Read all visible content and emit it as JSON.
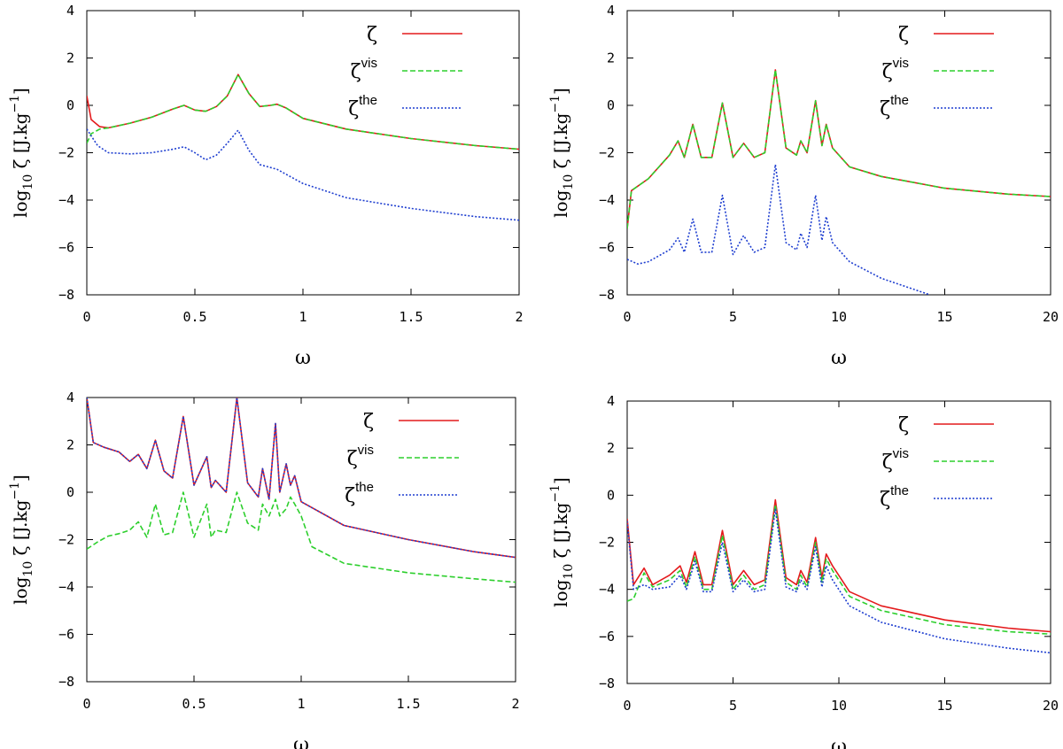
{
  "figure": {
    "layout": "2x2 grid of log-scale response spectra"
  },
  "chart_data": [
    {
      "type": "line",
      "panel": "top-left",
      "xlabel": "ω",
      "ylabel": "log10 ζ [J.kg^-1]",
      "ylabel_parts": {
        "base": "log",
        "sub": "10",
        "sym": " ζ [J.kg",
        "sup": "−1",
        "close": "]"
      },
      "xlim": [
        0,
        2
      ],
      "ylim": [
        -8,
        4
      ],
      "xticks": [
        "0",
        "0.5",
        "1",
        "1.5",
        "2"
      ],
      "yticks": [
        "4",
        "2",
        "0",
        "−2",
        "−4",
        "−6",
        "−8"
      ],
      "legend_position": "top-right",
      "series": [
        {
          "name": "ζ",
          "sup": "",
          "color": "#e41a1c",
          "dash": "solid",
          "x": [
            0,
            0.02,
            0.06,
            0.1,
            0.2,
            0.3,
            0.4,
            0.45,
            0.5,
            0.55,
            0.6,
            0.65,
            0.7,
            0.75,
            0.8,
            0.85,
            0.88,
            0.92,
            1.0,
            1.2,
            1.5,
            1.8,
            2.0
          ],
          "y": [
            0.4,
            -0.6,
            -0.9,
            -0.95,
            -0.75,
            -0.5,
            -0.15,
            0.0,
            -0.2,
            -0.25,
            -0.05,
            0.4,
            1.3,
            0.5,
            -0.05,
            0.0,
            0.05,
            -0.1,
            -0.55,
            -1.0,
            -1.4,
            -1.7,
            -1.85
          ]
        },
        {
          "name": "ζ",
          "sup": "vis",
          "color": "#2dcf2d",
          "dash": "6,3",
          "x": [
            0,
            0.02,
            0.06,
            0.1,
            0.2,
            0.3,
            0.4,
            0.45,
            0.5,
            0.55,
            0.6,
            0.65,
            0.7,
            0.75,
            0.8,
            0.85,
            0.88,
            0.92,
            1.0,
            1.2,
            1.5,
            1.8,
            2.0
          ],
          "y": [
            -1.6,
            -1.2,
            -1.0,
            -0.95,
            -0.75,
            -0.5,
            -0.15,
            0.0,
            -0.2,
            -0.25,
            -0.05,
            0.4,
            1.3,
            0.5,
            -0.05,
            0.0,
            0.05,
            -0.1,
            -0.55,
            -1.0,
            -1.4,
            -1.7,
            -1.85
          ]
        },
        {
          "name": "ζ",
          "sup": "the",
          "color": "#1f3fd0",
          "dash": "2,2",
          "x": [
            0,
            0.05,
            0.1,
            0.2,
            0.3,
            0.4,
            0.45,
            0.5,
            0.55,
            0.6,
            0.65,
            0.7,
            0.75,
            0.8,
            0.88,
            1.0,
            1.2,
            1.5,
            1.8,
            2.0
          ],
          "y": [
            -1.0,
            -1.7,
            -2.0,
            -2.05,
            -2.0,
            -1.85,
            -1.75,
            -2.0,
            -2.3,
            -2.1,
            -1.6,
            -1.05,
            -1.9,
            -2.5,
            -2.7,
            -3.3,
            -3.9,
            -4.35,
            -4.7,
            -4.85
          ]
        }
      ]
    },
    {
      "type": "line",
      "panel": "top-right",
      "xlabel": "ω",
      "ylabel": "log10 ζ [J.kg^-1]",
      "ylabel_parts": {
        "base": "log",
        "sub": "10",
        "sym": " ζ [J.kg",
        "sup": "−1",
        "close": "]"
      },
      "xlim": [
        0,
        20
      ],
      "ylim": [
        -8,
        4
      ],
      "xticks": [
        "0",
        "5",
        "10",
        "15",
        "20"
      ],
      "yticks": [
        "4",
        "2",
        "0",
        "−2",
        "−4",
        "−6",
        "−8"
      ],
      "legend_position": "top-right",
      "series": [
        {
          "name": "ζ",
          "sup": "",
          "color": "#e41a1c",
          "dash": "solid",
          "x": [
            0,
            0.2,
            1.0,
            2.0,
            2.4,
            2.7,
            3.1,
            3.5,
            4.0,
            4.5,
            5.0,
            5.5,
            6.0,
            6.5,
            7.0,
            7.5,
            8.0,
            8.2,
            8.5,
            8.9,
            9.2,
            9.4,
            9.7,
            10.5,
            12,
            15,
            18,
            20
          ],
          "y": [
            -5.2,
            -3.6,
            -3.1,
            -2.1,
            -1.5,
            -2.2,
            -0.8,
            -2.2,
            -2.2,
            0.1,
            -2.2,
            -1.6,
            -2.2,
            -2.0,
            1.5,
            -1.8,
            -2.1,
            -1.5,
            -2.0,
            0.2,
            -1.7,
            -0.8,
            -1.8,
            -2.6,
            -3.0,
            -3.5,
            -3.75,
            -3.85
          ]
        },
        {
          "name": "ζ",
          "sup": "vis",
          "color": "#2dcf2d",
          "dash": "6,3",
          "x": [
            0,
            0.2,
            1.0,
            2.0,
            2.4,
            2.7,
            3.1,
            3.5,
            4.0,
            4.5,
            5.0,
            5.5,
            6.0,
            6.5,
            7.0,
            7.5,
            8.0,
            8.2,
            8.5,
            8.9,
            9.2,
            9.4,
            9.7,
            10.5,
            12,
            15,
            18,
            20
          ],
          "y": [
            -5.2,
            -3.6,
            -3.1,
            -2.1,
            -1.5,
            -2.2,
            -0.8,
            -2.2,
            -2.2,
            0.1,
            -2.2,
            -1.6,
            -2.2,
            -2.0,
            1.5,
            -1.8,
            -2.1,
            -1.5,
            -2.0,
            0.2,
            -1.7,
            -0.8,
            -1.8,
            -2.6,
            -3.0,
            -3.5,
            -3.75,
            -3.85
          ]
        },
        {
          "name": "ζ",
          "sup": "the",
          "color": "#1f3fd0",
          "dash": "2,2",
          "x": [
            0,
            0.5,
            1.0,
            2.0,
            2.4,
            2.7,
            3.1,
            3.5,
            4.0,
            4.5,
            5.0,
            5.5,
            6.0,
            6.5,
            7.0,
            7.5,
            8.0,
            8.2,
            8.5,
            8.9,
            9.2,
            9.4,
            9.7,
            10.5,
            12,
            14.3
          ],
          "y": [
            -6.5,
            -6.7,
            -6.6,
            -6.1,
            -5.6,
            -6.2,
            -4.8,
            -6.2,
            -6.2,
            -3.8,
            -6.3,
            -5.5,
            -6.2,
            -6.0,
            -2.5,
            -5.8,
            -6.1,
            -5.4,
            -6.0,
            -3.8,
            -5.7,
            -4.7,
            -5.8,
            -6.6,
            -7.3,
            -8.0
          ]
        }
      ]
    },
    {
      "type": "line",
      "panel": "bottom-left",
      "xlabel": "ω",
      "ylabel": "log10 ζ [J.kg^-1]",
      "ylabel_parts": {
        "base": "log",
        "sub": "10",
        "sym": " ζ [J.kg",
        "sup": "−1",
        "close": "]"
      },
      "xlim": [
        0,
        2
      ],
      "ylim": [
        -8,
        4
      ],
      "xticks": [
        "0",
        "0.5",
        "1",
        "1.5",
        "2"
      ],
      "yticks": [
        "4",
        "2",
        "0",
        "−2",
        "−4",
        "−6",
        "−8"
      ],
      "legend_position": "top-right",
      "series": [
        {
          "name": "ζ",
          "sup": "",
          "color": "#e41a1c",
          "dash": "solid",
          "x": [
            0,
            0.03,
            0.08,
            0.15,
            0.2,
            0.24,
            0.28,
            0.32,
            0.36,
            0.4,
            0.45,
            0.5,
            0.56,
            0.58,
            0.6,
            0.65,
            0.7,
            0.75,
            0.8,
            0.82,
            0.85,
            0.88,
            0.9,
            0.93,
            0.95,
            0.97,
            1.0,
            1.2,
            1.5,
            1.8,
            2.0
          ],
          "y": [
            4.0,
            2.1,
            1.9,
            1.7,
            1.3,
            1.6,
            1.0,
            2.2,
            0.9,
            0.6,
            3.2,
            0.3,
            1.5,
            0.2,
            0.5,
            0.0,
            4.0,
            0.4,
            -0.2,
            1.0,
            -0.3,
            2.9,
            0.0,
            1.2,
            0.3,
            0.7,
            -0.4,
            -1.4,
            -2.0,
            -2.5,
            -2.75
          ]
        },
        {
          "name": "ζ",
          "sup": "vis",
          "color": "#2dcf2d",
          "dash": "6,3",
          "x": [
            0,
            0.05,
            0.1,
            0.15,
            0.2,
            0.24,
            0.28,
            0.32,
            0.36,
            0.4,
            0.45,
            0.5,
            0.56,
            0.58,
            0.6,
            0.65,
            0.7,
            0.75,
            0.8,
            0.82,
            0.85,
            0.88,
            0.9,
            0.93,
            0.95,
            0.97,
            1.0,
            1.05,
            1.2,
            1.5,
            1.8,
            2.0
          ],
          "y": [
            -2.4,
            -2.1,
            -1.85,
            -1.75,
            -1.6,
            -1.25,
            -1.9,
            -0.5,
            -1.8,
            -1.7,
            0.0,
            -1.9,
            -0.5,
            -1.9,
            -1.6,
            -1.7,
            0.0,
            -1.3,
            -1.6,
            -0.5,
            -1.0,
            -0.3,
            -1.0,
            -0.7,
            -0.2,
            -0.5,
            -1.0,
            -2.3,
            -3.0,
            -3.4,
            -3.65,
            -3.8
          ]
        },
        {
          "name": "ζ",
          "sup": "the",
          "color": "#1f3fd0",
          "dash": "2,2",
          "x": [
            0,
            0.03,
            0.08,
            0.15,
            0.2,
            0.24,
            0.28,
            0.32,
            0.36,
            0.4,
            0.45,
            0.5,
            0.56,
            0.58,
            0.6,
            0.65,
            0.7,
            0.75,
            0.8,
            0.82,
            0.85,
            0.88,
            0.9,
            0.93,
            0.95,
            0.97,
            1.0,
            1.2,
            1.5,
            1.8,
            2.0
          ],
          "y": [
            4.0,
            2.1,
            1.9,
            1.7,
            1.3,
            1.6,
            1.0,
            2.2,
            0.9,
            0.6,
            3.2,
            0.3,
            1.5,
            0.2,
            0.5,
            0.0,
            4.0,
            0.4,
            -0.2,
            1.0,
            -0.3,
            2.9,
            0.0,
            1.2,
            0.3,
            0.7,
            -0.4,
            -1.4,
            -2.0,
            -2.5,
            -2.75
          ]
        }
      ]
    },
    {
      "type": "line",
      "panel": "bottom-right",
      "xlabel": "ω",
      "ylabel": "log10 ζ [J.kg^-1]",
      "ylabel_parts": {
        "base": "log",
        "sub": "10",
        "sym": " ζ [J.kg",
        "sup": "−1",
        "close": "]"
      },
      "xlim": [
        0,
        20
      ],
      "ylim": [
        -8,
        4
      ],
      "xticks": [
        "0",
        "5",
        "10",
        "15",
        "20"
      ],
      "yticks": [
        "4",
        "2",
        "0",
        "−2",
        "−4",
        "−6",
        "−8"
      ],
      "legend_position": "top-right",
      "series": [
        {
          "name": "ζ",
          "sup": "",
          "color": "#e41a1c",
          "dash": "solid",
          "x": [
            0,
            0.3,
            0.8,
            1.2,
            2.0,
            2.5,
            2.8,
            3.2,
            3.6,
            4.0,
            4.5,
            5.0,
            5.5,
            6.0,
            6.5,
            7.0,
            7.5,
            8.0,
            8.2,
            8.5,
            8.9,
            9.2,
            9.4,
            9.7,
            10.5,
            12,
            15,
            18,
            20
          ],
          "y": [
            -1.0,
            -3.8,
            -3.1,
            -3.8,
            -3.4,
            -3.0,
            -3.7,
            -2.4,
            -3.8,
            -3.8,
            -1.5,
            -3.8,
            -3.2,
            -3.8,
            -3.6,
            -0.2,
            -3.5,
            -3.8,
            -3.2,
            -3.7,
            -1.8,
            -3.5,
            -2.5,
            -3.0,
            -4.1,
            -4.7,
            -5.3,
            -5.65,
            -5.8
          ]
        },
        {
          "name": "ζ",
          "sup": "vis",
          "color": "#2dcf2d",
          "dash": "6,3",
          "x": [
            0,
            0.3,
            0.8,
            1.2,
            2.0,
            2.5,
            2.8,
            3.2,
            3.6,
            4.0,
            4.5,
            5.0,
            5.5,
            6.0,
            6.5,
            7.0,
            7.5,
            8.0,
            8.2,
            8.5,
            8.9,
            9.2,
            9.4,
            9.7,
            10.5,
            12,
            15,
            18,
            20
          ],
          "y": [
            -4.5,
            -4.4,
            -3.3,
            -3.9,
            -3.6,
            -3.2,
            -3.9,
            -2.6,
            -4.0,
            -4.0,
            -1.7,
            -4.0,
            -3.4,
            -4.0,
            -3.8,
            -0.4,
            -3.7,
            -4.0,
            -3.4,
            -3.9,
            -2.0,
            -3.7,
            -2.7,
            -3.2,
            -4.3,
            -4.9,
            -5.5,
            -5.8,
            -5.9
          ]
        },
        {
          "name": "ζ",
          "sup": "the",
          "color": "#1f3fd0",
          "dash": "2,2",
          "x": [
            0,
            0.3,
            0.8,
            1.2,
            2.0,
            2.5,
            2.8,
            3.2,
            3.6,
            4.0,
            4.5,
            5.0,
            5.5,
            6.0,
            6.5,
            7.0,
            7.5,
            8.0,
            8.2,
            8.5,
            8.9,
            9.2,
            9.4,
            9.7,
            10.5,
            12,
            15,
            18,
            20
          ],
          "y": [
            -1.1,
            -4.0,
            -3.8,
            -4.0,
            -3.9,
            -3.4,
            -4.0,
            -2.8,
            -4.1,
            -4.1,
            -2.0,
            -4.1,
            -3.6,
            -4.1,
            -4.0,
            -0.6,
            -3.9,
            -4.1,
            -3.6,
            -4.0,
            -2.2,
            -3.9,
            -3.0,
            -3.6,
            -4.7,
            -5.4,
            -6.1,
            -6.5,
            -6.7
          ]
        }
      ]
    }
  ]
}
